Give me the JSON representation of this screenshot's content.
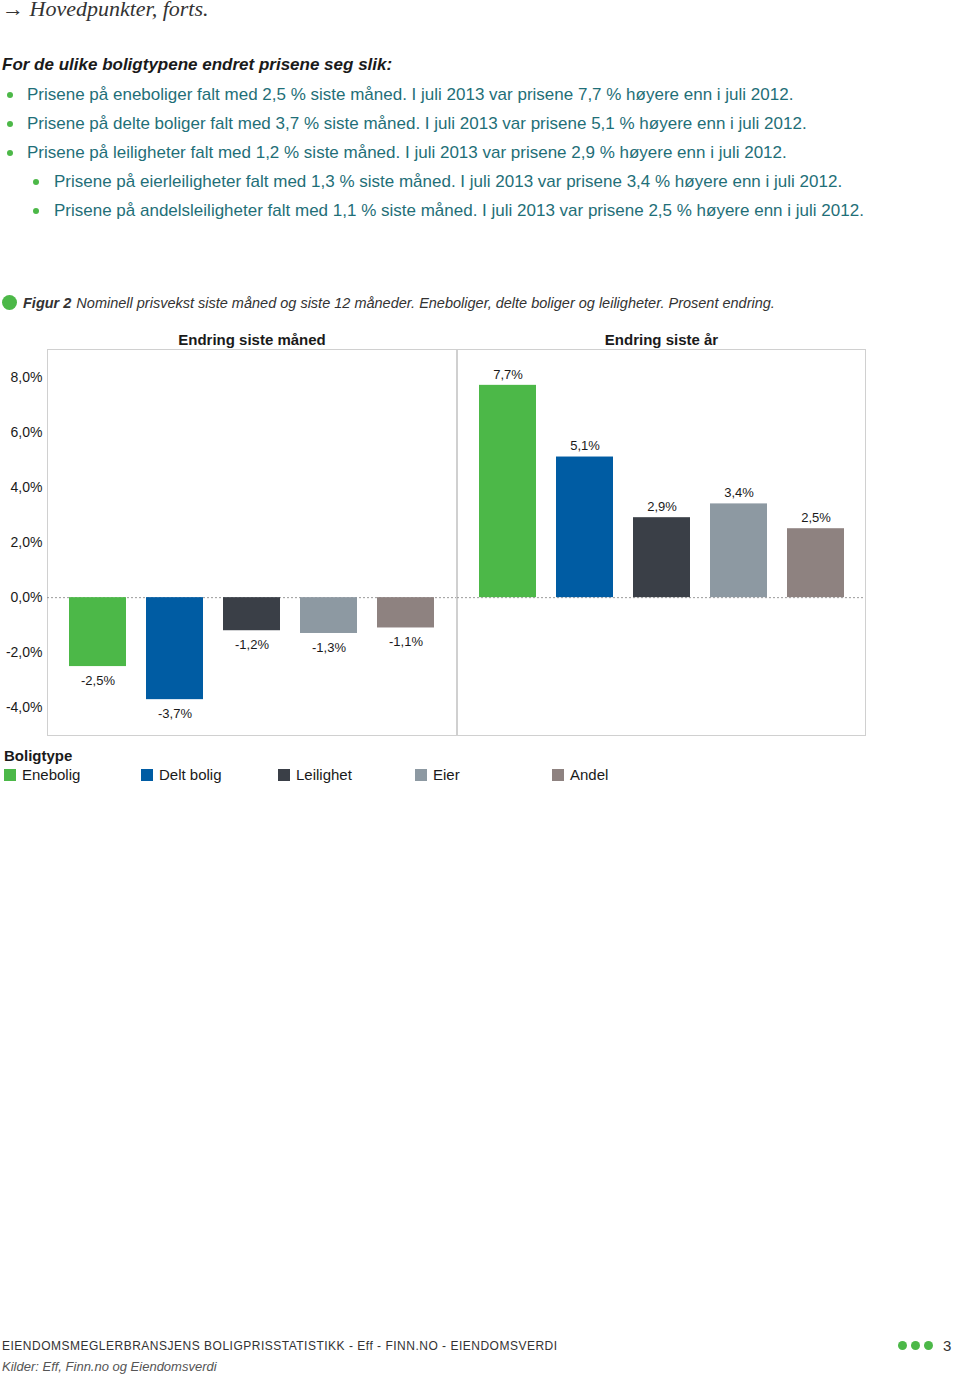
{
  "page": {
    "header": "→ Hovedpunkter, forts.",
    "intro": "For de ulike boligtypene endret prisene seg slik:",
    "bullets": [
      {
        "text": "Prisene på eneboliger falt med 2,5 % siste måned. I juli 2013 var prisene 7,7 % høyere enn i juli 2012."
      },
      {
        "text": "Prisene på delte boliger falt med 3,7 % siste måned. I juli 2013 var prisene 5,1 % høyere enn i juli 2012."
      },
      {
        "text": "Prisene på leiligheter falt med 1,2 % siste måned. I juli 2013 var prisene 2,9 % høyere enn i juli 2012.",
        "sub": [
          "Prisene på eierleiligheter falt med 1,3 % siste måned. I juli 2013 var prisene 3,4 % høyere enn i juli 2012.",
          "Prisene på andelsleiligheter falt med 1,1 % siste måned. I juli 2013 var prisene 2,5 % høyere enn i juli 2012."
        ]
      }
    ],
    "footer": "EIENDOMSMEGLERBRANSJENS BOLIGPRISSTATISTIKK - Eff - FINN.NO - EIENDOMSVERDI",
    "page_number": "3",
    "source": "Kilder: Eff, Finn.no og Eiendomsverdi"
  },
  "figure": {
    "label": "Figur 2",
    "caption": "Nominell prisvekst siste måned og siste 12 måneder. Eneboliger, delte boliger og leiligheter. Prosent endring.",
    "legend_title": "Boligtype"
  },
  "chart_data": [
    {
      "type": "bar",
      "title": "Endring siste måned",
      "categories": [
        "Enebolig",
        "Delt bolig",
        "Leilighet",
        "Eier",
        "Andel"
      ],
      "values": [
        -2.5,
        -3.7,
        -1.2,
        -1.3,
        -1.1
      ],
      "value_labels": [
        "-2,5%",
        "-3,7%",
        "-1,2%",
        "-1,3%",
        "-1,1%"
      ],
      "colors": [
        "#4cb848",
        "#005ca3",
        "#3a3f47",
        "#8d99a2",
        "#8e8280"
      ],
      "ylim": [
        -5,
        9
      ],
      "yticks": [
        {
          "value": -4,
          "label": "-4,0%"
        },
        {
          "value": -2,
          "label": "-2,0%"
        },
        {
          "value": 0,
          "label": "0,0%"
        },
        {
          "value": 2,
          "label": "2,0%"
        },
        {
          "value": 4,
          "label": "4,0%"
        },
        {
          "value": 6,
          "label": "6,0%"
        },
        {
          "value": 8,
          "label": "8,0%"
        }
      ],
      "tick_labels": "y",
      "data_labels": true,
      "grid": false,
      "legend": "bottom-left"
    },
    {
      "type": "bar",
      "title": "Endring siste år",
      "categories": [
        "Enebolig",
        "Delt bolig",
        "Leilighet",
        "Eier",
        "Andel"
      ],
      "values": [
        7.7,
        5.1,
        2.9,
        3.4,
        2.5
      ],
      "value_labels": [
        "7,7%",
        "5,1%",
        "2,9%",
        "3,4%",
        "2,5%"
      ],
      "colors": [
        "#4cb848",
        "#005ca3",
        "#3a3f47",
        "#8d99a2",
        "#8e8280"
      ],
      "ylim": [
        -5,
        9
      ],
      "tick_labels": false,
      "data_labels": true,
      "grid": false,
      "legend": "bottom-left"
    }
  ]
}
